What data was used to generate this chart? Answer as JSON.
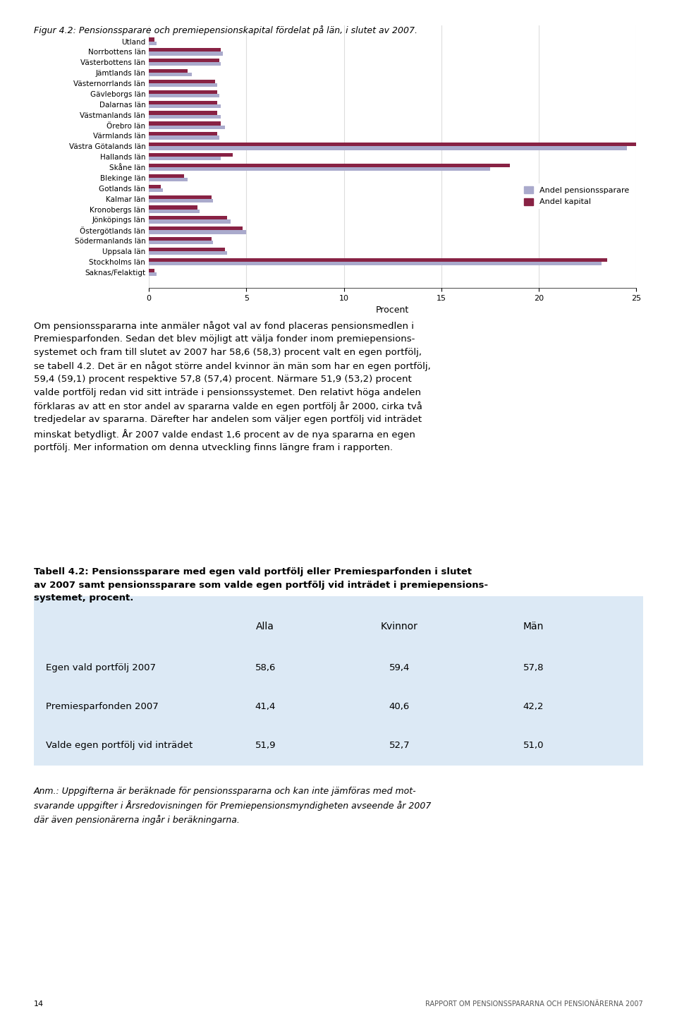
{
  "title": "Figur 4.2: Pensionssparare och premiepensionskapital fördelat på län, i slutet av 2007.",
  "categories": [
    "Utland",
    "Norrbottens län",
    "Västerbottens län",
    "Jämtlands län",
    "Västernorrlands län",
    "Gävleborgs län",
    "Dalarnas län",
    "Västmanlands län",
    "Örebro län",
    "Värmlands län",
    "Västra Götalands län",
    "Hallands län",
    "Skåne län",
    "Blekinge län",
    "Gotlands län",
    "Kalmar län",
    "Kronobergs län",
    "Jönköpings län",
    "Östergötlands län",
    "Södermanlands län",
    "Uppsala län",
    "Stockholms län",
    "Saknas/Felaktigt"
  ],
  "andel_pensionssparare": [
    0.4,
    3.8,
    3.7,
    2.2,
    3.5,
    3.6,
    3.7,
    3.7,
    3.9,
    3.6,
    24.5,
    3.7,
    17.5,
    2.0,
    0.7,
    3.3,
    2.6,
    4.2,
    5.0,
    3.3,
    4.0,
    23.2,
    0.4
  ],
  "andel_kapital": [
    0.3,
    3.7,
    3.6,
    2.0,
    3.4,
    3.5,
    3.5,
    3.5,
    3.7,
    3.5,
    25.5,
    4.3,
    18.5,
    1.8,
    0.6,
    3.2,
    2.5,
    4.0,
    4.8,
    3.2,
    3.9,
    23.5,
    0.3
  ],
  "color_pensionssparare": "#aaaacc",
  "color_kapital": "#882244",
  "xlabel": "Procent",
  "xlim": [
    0,
    25
  ],
  "xticks": [
    0,
    5,
    10,
    15,
    20,
    25
  ],
  "legend_pensionssparare": "Andel pensionssparare",
  "legend_kapital": "Andel kapital",
  "background_chart": "#ffffff",
  "background_page": "#ffffff",
  "bar_height": 0.35,
  "gridcolor": "#dddddd"
}
